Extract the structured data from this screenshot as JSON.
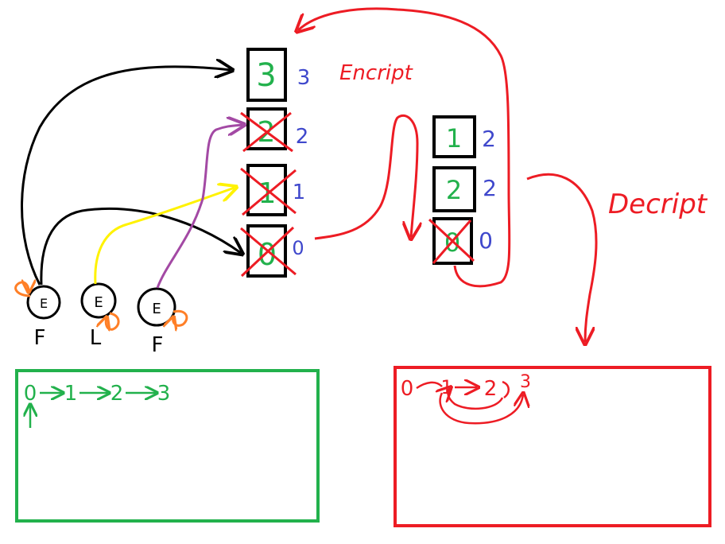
{
  "labels": {
    "encrypt": "Encript",
    "decrypt": "Decript"
  },
  "left_stack": [
    {
      "digit": "3",
      "index": "3",
      "crossed": false
    },
    {
      "digit": "2",
      "index": "2",
      "crossed": true
    },
    {
      "digit": "1",
      "index": "1",
      "crossed": true
    },
    {
      "digit": "0",
      "index": "0",
      "crossed": true
    }
  ],
  "right_stack": [
    {
      "digit": "1",
      "index": "2",
      "crossed": false
    },
    {
      "digit": "2",
      "index": "2",
      "crossed": false
    },
    {
      "digit": "0",
      "index": "0",
      "crossed": true
    }
  ],
  "nodes": [
    {
      "symbol": "E",
      "caption": "F",
      "loop": "top-left"
    },
    {
      "symbol": "E",
      "caption": "L",
      "loop": "bottom-right"
    },
    {
      "symbol": "E",
      "caption": "F",
      "loop": "right"
    }
  ],
  "green_box": {
    "sequence": [
      "0",
      "1",
      "2",
      "3"
    ],
    "up_arrow_under": "0"
  },
  "red_box": {
    "sequence": [
      "0",
      "1",
      "2",
      "3"
    ]
  },
  "colors": {
    "green": "#22b14c",
    "red": "#ed1c24",
    "blue": "#3f48cc",
    "black": "#000000",
    "yellow": "#fff200",
    "purple": "#a349a4",
    "orange": "#ff7f27"
  }
}
